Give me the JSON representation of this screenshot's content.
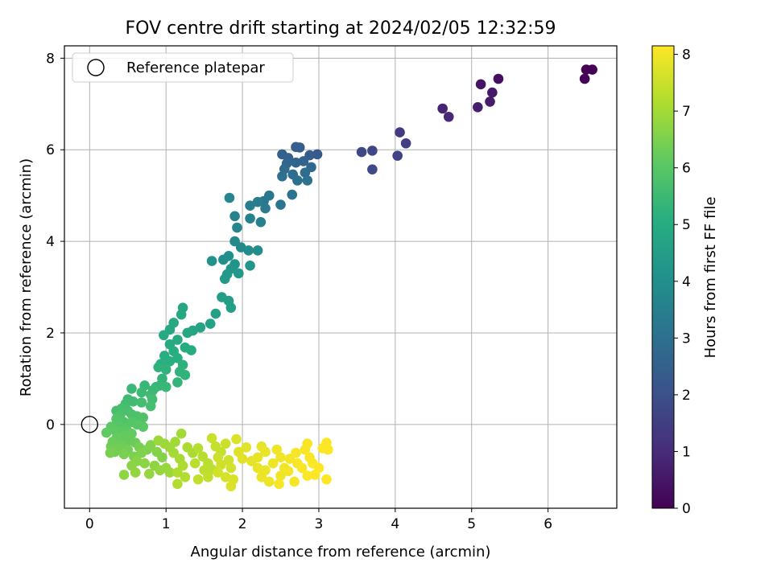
{
  "chart_data": {
    "type": "scatter",
    "title": "FOV centre drift starting at 2024/02/05 12:32:59",
    "xlabel": "Angular distance from reference (arcmin)",
    "ylabel": "Rotation from reference (arcmin)",
    "xlim": [
      -0.33,
      6.9
    ],
    "ylim": [
      -1.83,
      8.27
    ],
    "xticks": [
      0,
      1,
      2,
      3,
      4,
      5,
      6
    ],
    "yticks": [
      0,
      2,
      4,
      6,
      8
    ],
    "grid": true,
    "legend": {
      "placement": "top-left",
      "entries": [
        "Reference platepar"
      ]
    },
    "reference_point": {
      "x": 0,
      "y": 0,
      "label": "Reference platepar"
    },
    "colorbar": {
      "label": "Hours from first FF file",
      "range": [
        0,
        8.15
      ],
      "ticks": [
        0,
        1,
        2,
        3,
        4,
        5,
        6,
        7,
        8
      ],
      "colormap": "viridis"
    },
    "points": [
      [
        6.5,
        7.75,
        0.0
      ],
      [
        6.58,
        7.75,
        0.05
      ],
      [
        6.48,
        7.55,
        0.1
      ],
      [
        5.35,
        7.55,
        0.3
      ],
      [
        5.12,
        7.43,
        0.45
      ],
      [
        5.27,
        7.25,
        0.55
      ],
      [
        5.24,
        7.05,
        0.6
      ],
      [
        5.08,
        6.93,
        0.7
      ],
      [
        4.62,
        6.9,
        0.8
      ],
      [
        4.7,
        6.72,
        0.9
      ],
      [
        4.06,
        6.38,
        1.4
      ],
      [
        4.14,
        6.14,
        1.5
      ],
      [
        4.03,
        5.87,
        1.6
      ],
      [
        3.7,
        5.98,
        1.7
      ],
      [
        3.56,
        5.95,
        1.75
      ],
      [
        3.7,
        5.57,
        1.8
      ],
      [
        2.98,
        5.9,
        2.3
      ],
      [
        2.88,
        5.88,
        2.35
      ],
      [
        2.75,
        6.05,
        2.4
      ],
      [
        2.7,
        6.06,
        2.45
      ],
      [
        2.52,
        5.9,
        2.5
      ],
      [
        2.6,
        5.82,
        2.55
      ],
      [
        2.8,
        5.75,
        2.6
      ],
      [
        2.7,
        5.72,
        2.65
      ],
      [
        2.58,
        5.7,
        2.7
      ],
      [
        2.9,
        5.62,
        2.75
      ],
      [
        2.55,
        5.58,
        2.8
      ],
      [
        2.82,
        5.5,
        2.85
      ],
      [
        2.66,
        5.46,
        2.9
      ],
      [
        2.52,
        5.42,
        2.95
      ],
      [
        2.72,
        5.33,
        3.0
      ],
      [
        2.85,
        5.33,
        3.05
      ],
      [
        2.65,
        5.02,
        3.1
      ],
      [
        2.5,
        4.8,
        3.2
      ],
      [
        2.35,
        5.0,
        3.25
      ],
      [
        2.28,
        4.88,
        3.3
      ],
      [
        2.3,
        4.72,
        3.35
      ],
      [
        2.2,
        4.86,
        3.4
      ],
      [
        2.1,
        4.78,
        3.45
      ],
      [
        2.24,
        4.42,
        3.5
      ],
      [
        2.1,
        4.5,
        3.55
      ],
      [
        1.9,
        4.55,
        3.6
      ],
      [
        1.93,
        4.3,
        3.65
      ],
      [
        1.83,
        4.95,
        3.7
      ],
      [
        1.9,
        4.0,
        3.8
      ],
      [
        1.98,
        3.87,
        3.85
      ],
      [
        2.08,
        3.8,
        3.9
      ],
      [
        2.2,
        3.8,
        3.95
      ],
      [
        1.82,
        3.68,
        4.0
      ],
      [
        1.75,
        3.6,
        4.05
      ],
      [
        1.6,
        3.57,
        4.1
      ],
      [
        1.9,
        3.5,
        4.15
      ],
      [
        1.85,
        3.4,
        4.2
      ],
      [
        2.1,
        3.47,
        4.25
      ],
      [
        1.95,
        3.3,
        4.3
      ],
      [
        1.8,
        3.28,
        4.35
      ],
      [
        1.77,
        3.18,
        4.4
      ],
      [
        1.73,
        2.78,
        4.45
      ],
      [
        1.82,
        2.7,
        4.5
      ],
      [
        1.85,
        2.55,
        4.55
      ],
      [
        1.65,
        2.42,
        4.6
      ],
      [
        1.58,
        2.2,
        4.65
      ],
      [
        1.45,
        2.12,
        4.7
      ],
      [
        1.35,
        2.05,
        4.75
      ],
      [
        1.28,
        2.0,
        4.8
      ],
      [
        1.22,
        2.55,
        4.82
      ],
      [
        1.2,
        2.4,
        4.85
      ],
      [
        1.1,
        2.22,
        4.88
      ],
      [
        1.05,
        2.07,
        4.9
      ],
      [
        0.97,
        1.95,
        4.92
      ],
      [
        1.15,
        1.85,
        4.95
      ],
      [
        1.05,
        1.75,
        4.97
      ],
      [
        1.25,
        1.68,
        5.0
      ],
      [
        1.33,
        1.62,
        5.02
      ],
      [
        1.1,
        1.6,
        5.05
      ],
      [
        0.98,
        1.5,
        5.08
      ],
      [
        1.15,
        1.45,
        5.1
      ],
      [
        1.05,
        1.38,
        5.12
      ],
      [
        0.93,
        1.32,
        5.15
      ],
      [
        1.22,
        1.3,
        5.18
      ],
      [
        0.9,
        1.25,
        5.2
      ],
      [
        1.0,
        1.2,
        5.22
      ],
      [
        1.18,
        1.15,
        5.25
      ],
      [
        1.25,
        1.08,
        5.28
      ],
      [
        0.95,
        1.0,
        5.3
      ],
      [
        1.15,
        0.92,
        5.32
      ],
      [
        0.92,
        0.85,
        5.35
      ],
      [
        0.87,
        0.82,
        5.38
      ],
      [
        0.72,
        0.85,
        5.4
      ],
      [
        1.0,
        0.82,
        5.42
      ],
      [
        0.55,
        0.78,
        5.45
      ],
      [
        0.83,
        0.75,
        5.48
      ],
      [
        0.68,
        0.7,
        5.5
      ],
      [
        0.8,
        0.65,
        5.52
      ],
      [
        0.5,
        0.55,
        5.55
      ],
      [
        0.57,
        0.5,
        5.58
      ],
      [
        0.47,
        0.45,
        5.6
      ],
      [
        0.82,
        0.55,
        5.62
      ],
      [
        0.68,
        0.48,
        5.65
      ],
      [
        0.8,
        0.4,
        5.68
      ],
      [
        0.42,
        0.35,
        5.7
      ],
      [
        0.35,
        0.3,
        5.72
      ],
      [
        0.5,
        0.3,
        5.75
      ],
      [
        0.55,
        0.22,
        5.78
      ],
      [
        0.4,
        0.2,
        5.8
      ],
      [
        0.62,
        0.18,
        5.82
      ],
      [
        0.7,
        0.15,
        5.85
      ],
      [
        0.35,
        0.12,
        5.88
      ],
      [
        0.45,
        0.05,
        5.9
      ],
      [
        0.55,
        0.05,
        5.92
      ],
      [
        0.38,
        -0.02,
        5.95
      ],
      [
        0.62,
        0.0,
        5.97
      ],
      [
        0.7,
        -0.05,
        6.0
      ],
      [
        0.28,
        -0.05,
        6.02
      ],
      [
        0.48,
        -0.1,
        6.05
      ],
      [
        0.42,
        -0.15,
        6.08
      ],
      [
        0.32,
        -0.12,
        6.1
      ],
      [
        0.22,
        -0.18,
        6.12
      ],
      [
        0.55,
        -0.2,
        6.15
      ],
      [
        0.45,
        -0.25,
        6.18
      ],
      [
        0.35,
        -0.3,
        6.2
      ],
      [
        0.52,
        -0.35,
        6.22
      ],
      [
        0.3,
        -0.38,
        6.25
      ],
      [
        0.42,
        -0.42,
        6.28
      ],
      [
        0.6,
        -0.4,
        6.3
      ],
      [
        0.28,
        -0.48,
        6.32
      ],
      [
        0.38,
        -0.52,
        6.35
      ],
      [
        0.5,
        -0.55,
        6.38
      ],
      [
        0.33,
        -0.6,
        6.4
      ],
      [
        0.65,
        -0.5,
        6.42
      ],
      [
        0.27,
        -0.62,
        6.45
      ],
      [
        0.45,
        -0.65,
        6.48
      ],
      [
        0.58,
        -0.7,
        6.5
      ],
      [
        0.75,
        -0.55,
        6.52
      ],
      [
        0.68,
        -0.62,
        6.55
      ],
      [
        0.8,
        -0.45,
        6.58
      ],
      [
        0.88,
        -0.6,
        6.6
      ],
      [
        0.95,
        -0.72,
        6.62
      ],
      [
        0.62,
        -0.8,
        6.65
      ],
      [
        0.55,
        -0.9,
        6.68
      ],
      [
        0.72,
        -0.85,
        6.7
      ],
      [
        0.85,
        -0.9,
        6.72
      ],
      [
        0.45,
        -1.1,
        6.75
      ],
      [
        0.6,
        -1.05,
        6.78
      ],
      [
        0.78,
        -1.08,
        6.8
      ],
      [
        0.92,
        -1.0,
        6.82
      ],
      [
        1.0,
        -0.95,
        6.85
      ],
      [
        1.05,
        -1.05,
        6.88
      ],
      [
        0.9,
        -0.35,
        6.9
      ],
      [
        0.98,
        -0.42,
        6.92
      ],
      [
        1.05,
        -0.5,
        6.95
      ],
      [
        1.12,
        -0.38,
        6.97
      ],
      [
        1.2,
        -0.2,
        7.0
      ],
      [
        1.1,
        -0.62,
        7.02
      ],
      [
        1.18,
        -0.75,
        7.05
      ],
      [
        1.28,
        -0.5,
        7.08
      ],
      [
        1.35,
        -0.62,
        7.1
      ],
      [
        1.22,
        -0.9,
        7.12
      ],
      [
        1.15,
        -1.05,
        7.15
      ],
      [
        1.25,
        -1.15,
        7.18
      ],
      [
        1.15,
        -1.3,
        7.2
      ],
      [
        1.42,
        -0.52,
        7.22
      ],
      [
        1.48,
        -0.7,
        7.25
      ],
      [
        1.38,
        -0.85,
        7.28
      ],
      [
        1.55,
        -0.85,
        7.3
      ],
      [
        1.5,
        -1.0,
        7.32
      ],
      [
        1.6,
        -0.98,
        7.35
      ],
      [
        1.42,
        -1.2,
        7.38
      ],
      [
        1.55,
        -1.15,
        7.4
      ],
      [
        1.65,
        -0.48,
        7.42
      ],
      [
        1.72,
        -0.6,
        7.45
      ],
      [
        1.6,
        -0.3,
        7.48
      ],
      [
        1.78,
        -0.42,
        7.5
      ],
      [
        1.68,
        -0.72,
        7.52
      ],
      [
        1.82,
        -0.78,
        7.55
      ],
      [
        1.72,
        -0.88,
        7.58
      ],
      [
        1.85,
        -0.95,
        7.6
      ],
      [
        1.68,
        -1.05,
        7.62
      ],
      [
        1.78,
        -1.15,
        7.65
      ],
      [
        1.88,
        -1.2,
        7.68
      ],
      [
        1.85,
        -1.35,
        7.7
      ],
      [
        1.92,
        -0.32,
        7.72
      ],
      [
        1.95,
        -0.6,
        7.75
      ],
      [
        2.05,
        -0.5,
        7.78
      ],
      [
        2.0,
        -0.75,
        7.8
      ],
      [
        2.12,
        -0.8,
        7.82
      ],
      [
        2.25,
        -0.48,
        7.85
      ],
      [
        2.2,
        -0.72,
        7.87
      ],
      [
        2.3,
        -0.6,
        7.88
      ],
      [
        2.2,
        -0.95,
        7.9
      ],
      [
        2.3,
        -1.0,
        7.92
      ],
      [
        2.25,
        -1.15,
        7.93
      ],
      [
        2.35,
        -1.25,
        7.95
      ],
      [
        2.4,
        -0.85,
        7.96
      ],
      [
        2.45,
        -0.55,
        7.97
      ],
      [
        2.5,
        -0.72,
        7.98
      ],
      [
        2.55,
        -0.95,
        7.99
      ],
      [
        2.5,
        -1.12,
        8.0
      ],
      [
        2.62,
        -0.75,
        8.02
      ],
      [
        2.6,
        -1.02,
        8.03
      ],
      [
        2.68,
        -1.25,
        8.04
      ],
      [
        2.48,
        -1.3,
        8.05
      ],
      [
        2.7,
        -0.62,
        8.06
      ],
      [
        2.72,
        -0.85,
        8.07
      ],
      [
        2.82,
        -0.55,
        8.08
      ],
      [
        2.85,
        -0.42,
        8.09
      ],
      [
        2.88,
        -0.72,
        8.1
      ],
      [
        2.78,
        -0.95,
        8.1
      ],
      [
        2.92,
        -0.85,
        8.11
      ],
      [
        2.85,
        -1.12,
        8.12
      ],
      [
        2.95,
        -1.1,
        8.12
      ],
      [
        3.05,
        -0.52,
        8.13
      ],
      [
        3.1,
        -0.4,
        8.13
      ],
      [
        3.12,
        -0.55,
        8.14
      ],
      [
        3.1,
        -1.2,
        8.14
      ],
      [
        3.0,
        -0.95,
        8.15
      ]
    ]
  }
}
